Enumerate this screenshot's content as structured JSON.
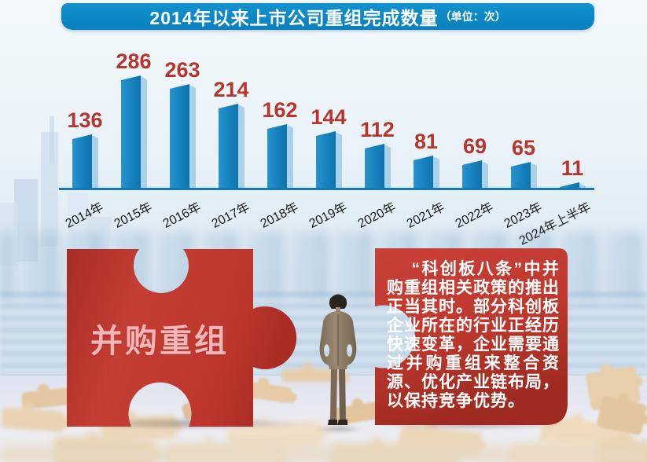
{
  "banner": {
    "title": "2014年以来上市公司重组完成数量",
    "unit": "（单位：次）"
  },
  "chart_data": {
    "type": "bar",
    "title": "2014年以来上市公司重组完成数量",
    "unit": "次",
    "categories": [
      "2014年",
      "2015年",
      "2016年",
      "2017年",
      "2018年",
      "2019年",
      "2020年",
      "2021年",
      "2022年",
      "2023年",
      "2024年上半年"
    ],
    "values": [
      136,
      286,
      263,
      214,
      162,
      144,
      112,
      81,
      69,
      65,
      11
    ],
    "xlabel": "",
    "ylabel": "",
    "ylim": [
      0,
      300
    ],
    "grid": false,
    "legend": "none",
    "bar_color": "#1581bd",
    "bar_side_color": "#a9d2ea",
    "axis_color": "#1878b2",
    "value_label_color": "#b6352c"
  },
  "puzzle_left": {
    "label": "并购重组",
    "color": "#c0392e",
    "text_color": "#f3b6b8"
  },
  "puzzle_right": {
    "text": "“科创板八条”中并购重组相关政策的推出正当其时。部分科创板企业所在的行业正经历快速变革，企业需要通过并购重组来整合资源、优化产业链布局，以保持竞争优势。",
    "color": "#c0392e",
    "text_color": "#ffffff"
  },
  "scene": {
    "figurine_icon": "businessman-back-view-figurine",
    "ground_icon": "scattered-jigsaw-pieces"
  }
}
